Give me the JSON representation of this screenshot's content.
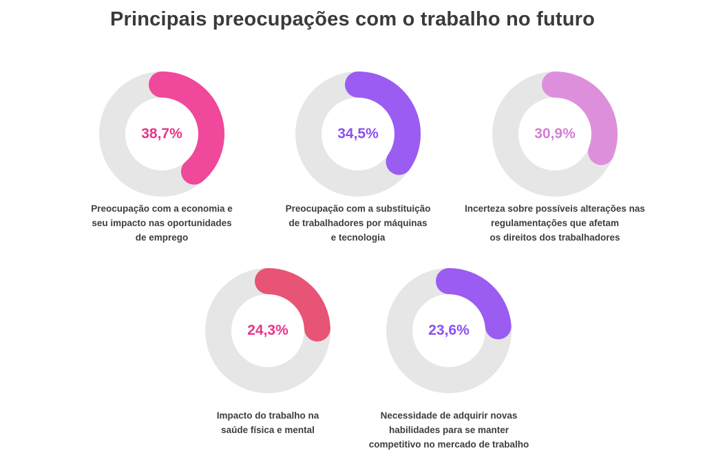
{
  "chart_data": {
    "type": "pie",
    "title": "Principais preocupações com o trabalho no futuro",
    "categories": [
      "Preocupação com a economia e seu impacto nas oportunidades de emprego",
      "Preocupação com a substituição de trabalhadores por máquinas e tecnologia",
      "Incerteza sobre possíveis alterações nas regulamentações que afetam os direitos dos trabalhadores",
      "Impacto do trabalho na saúde física e mental",
      "Necessidade de adquirir novas habilidades para se manter competitivo no mercado de trabalho"
    ],
    "values": [
      38.7,
      34.5,
      30.9,
      24.3,
      23.6
    ],
    "value_labels": [
      "38,7%",
      "34,5%",
      "30,9%",
      "24,3%",
      "23,6%"
    ],
    "caption_lines": [
      [
        "Preocupação com a economia e",
        "seu impacto nas oportunidades",
        "de emprego"
      ],
      [
        "Preocupação com a substituição",
        "de trabalhadores por máquinas",
        "e tecnologia"
      ],
      [
        "Incerteza sobre possíveis alterações nas",
        "regulamentações que afetam",
        "os direitos dos trabalhadores"
      ],
      [
        "Impacto do trabalho na",
        "saúde física e mental"
      ],
      [
        "Necessidade de adquirir novas",
        "habilidades para se manter",
        "competitivo no mercado de trabalho"
      ]
    ],
    "colors": [
      "#f0489a",
      "#9b5cf2",
      "#de8fdb",
      "#e85475",
      "#9b5cf2"
    ],
    "label_colors": [
      "#e8348a",
      "#8c4ff0",
      "#d37ed2",
      "#e8348a",
      "#8c4ff0"
    ],
    "track_color": "#e6e6e6"
  }
}
